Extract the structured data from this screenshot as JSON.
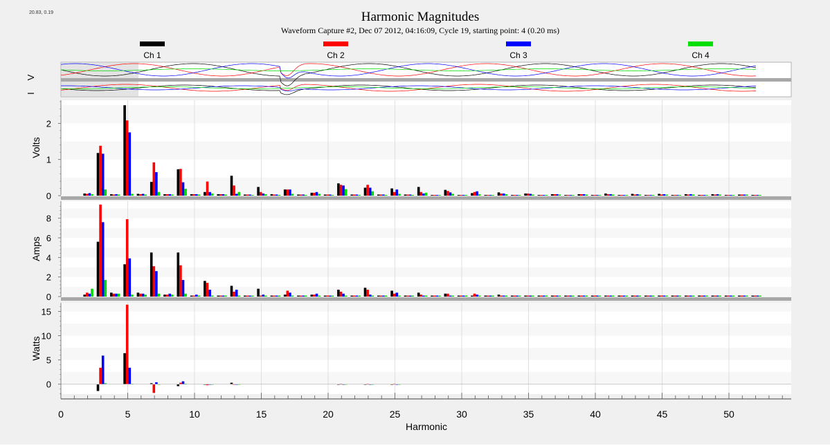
{
  "corner_readout": "20.83, 0.19",
  "title": "Harmonic Magnitudes",
  "subtitle": "Waveform Capture #2, Dec 07 2012, 04:16:09, Cycle 19,  starting point: 4  (0.20 ms)",
  "colors": {
    "background": "#f0f0f0",
    "grid": "#d8d8d8",
    "band": "#f7f7f7",
    "axis_bar": "#a8a8a8"
  },
  "legend": [
    {
      "label": "Ch 1",
      "color": "#000000"
    },
    {
      "label": "Ch 2",
      "color": "#ff0000"
    },
    {
      "label": "Ch 3",
      "color": "#0000ff"
    },
    {
      "label": "Ch 4",
      "color": "#00dd00"
    }
  ],
  "waveform_strip": {
    "v_label": "V",
    "i_label": "I"
  },
  "chart_data": [
    {
      "type": "bar",
      "ylabel": "Volts",
      "ylim": [
        0,
        2.6
      ],
      "yticks": [
        0,
        1,
        2
      ],
      "x": [
        2,
        3,
        4,
        5,
        6,
        7,
        8,
        9,
        10,
        11,
        12,
        13,
        14,
        15,
        16,
        17,
        18,
        19,
        20,
        21,
        22,
        23,
        24,
        25,
        26,
        27,
        28,
        29,
        30,
        31,
        32,
        33,
        34,
        35,
        36,
        37,
        38,
        39,
        40,
        41,
        42,
        43,
        44,
        45,
        46,
        47,
        48,
        49,
        50,
        51,
        52
      ],
      "series": [
        {
          "name": "Ch 1",
          "values": [
            0.06,
            1.18,
            0.04,
            2.5,
            0.05,
            0.38,
            0.04,
            0.73,
            0.04,
            0.1,
            0.04,
            0.55,
            0.03,
            0.24,
            0.04,
            0.17,
            0.03,
            0.08,
            0.03,
            0.34,
            0.03,
            0.22,
            0.03,
            0.2,
            0.03,
            0.24,
            0.02,
            0.16,
            0.02,
            0.07,
            0.02,
            0.09,
            0.02,
            0.06,
            0.02,
            0.04,
            0.02,
            0.04,
            0.02,
            0.06,
            0.02,
            0.05,
            0.02,
            0.05,
            0.02,
            0.04,
            0.02,
            0.04,
            0.02,
            0.03,
            0.02
          ]
        },
        {
          "name": "Ch 2",
          "values": [
            0.05,
            1.38,
            0.03,
            2.08,
            0.04,
            0.92,
            0.04,
            0.74,
            0.04,
            0.39,
            0.04,
            0.28,
            0.03,
            0.1,
            0.03,
            0.17,
            0.03,
            0.08,
            0.03,
            0.3,
            0.03,
            0.3,
            0.03,
            0.1,
            0.03,
            0.1,
            0.02,
            0.13,
            0.02,
            0.1,
            0.02,
            0.06,
            0.02,
            0.06,
            0.02,
            0.04,
            0.02,
            0.04,
            0.02,
            0.04,
            0.02,
            0.03,
            0.02,
            0.03,
            0.02,
            0.03,
            0.02,
            0.03,
            0.02,
            0.03,
            0.02
          ]
        },
        {
          "name": "Ch 3",
          "values": [
            0.07,
            1.16,
            0.04,
            1.75,
            0.05,
            0.65,
            0.04,
            0.37,
            0.04,
            0.1,
            0.04,
            0.05,
            0.03,
            0.06,
            0.03,
            0.17,
            0.03,
            0.1,
            0.03,
            0.28,
            0.03,
            0.22,
            0.03,
            0.17,
            0.03,
            0.06,
            0.02,
            0.09,
            0.02,
            0.12,
            0.02,
            0.06,
            0.02,
            0.05,
            0.02,
            0.04,
            0.02,
            0.04,
            0.02,
            0.04,
            0.02,
            0.04,
            0.02,
            0.04,
            0.02,
            0.04,
            0.02,
            0.04,
            0.02,
            0.03,
            0.02
          ]
        },
        {
          "name": "Ch 4",
          "values": [
            0.04,
            0.17,
            0.03,
            0.05,
            0.03,
            0.1,
            0.03,
            0.19,
            0.03,
            0.06,
            0.03,
            0.1,
            0.02,
            0.04,
            0.02,
            0.05,
            0.02,
            0.05,
            0.02,
            0.18,
            0.02,
            0.12,
            0.02,
            0.05,
            0.02,
            0.08,
            0.02,
            0.05,
            0.02,
            0.04,
            0.02,
            0.04,
            0.02,
            0.03,
            0.02,
            0.03,
            0.02,
            0.03,
            0.02,
            0.03,
            0.02,
            0.03,
            0.02,
            0.03,
            0.02,
            0.03,
            0.02,
            0.03,
            0.02,
            0.03,
            0.02
          ]
        }
      ]
    },
    {
      "type": "bar",
      "ylabel": "Amps",
      "ylim": [
        0,
        9.6
      ],
      "yticks": [
        0,
        2,
        4,
        6,
        8
      ],
      "x": [
        2,
        3,
        4,
        5,
        6,
        7,
        8,
        9,
        10,
        11,
        12,
        13,
        14,
        15,
        16,
        17,
        18,
        19,
        20,
        21,
        22,
        23,
        24,
        25,
        26,
        27,
        28,
        29,
        30,
        31,
        32,
        33,
        34,
        35,
        36,
        37,
        38,
        39,
        40,
        41,
        42,
        43,
        44,
        45,
        46,
        47,
        48,
        49,
        50,
        51,
        52
      ],
      "series": [
        {
          "name": "Ch 1",
          "values": [
            0.2,
            5.6,
            0.4,
            3.3,
            0.4,
            4.5,
            0.2,
            4.5,
            0.1,
            1.6,
            0.1,
            1.1,
            0.1,
            0.8,
            0.1,
            0.2,
            0.1,
            0.2,
            0.1,
            0.7,
            0.1,
            0.9,
            0.1,
            0.6,
            0.1,
            0.4,
            0.1,
            0.3,
            0.1,
            0.1,
            0.1,
            0.2,
            0.1,
            0.1,
            0.1,
            0.1,
            0.1,
            0.1,
            0.1,
            0.1,
            0.1,
            0.1,
            0.1,
            0.1,
            0.1,
            0.1,
            0.1,
            0.1,
            0.1,
            0.1,
            0.1
          ]
        },
        {
          "name": "Ch 2",
          "values": [
            0.4,
            9.4,
            0.3,
            7.9,
            0.3,
            3.1,
            0.2,
            3.2,
            0.1,
            1.4,
            0.1,
            0.5,
            0.1,
            0.1,
            0.1,
            0.6,
            0.1,
            0.2,
            0.1,
            0.5,
            0.1,
            0.7,
            0.1,
            0.3,
            0.1,
            0.2,
            0.1,
            0.3,
            0.1,
            0.3,
            0.1,
            0.1,
            0.1,
            0.1,
            0.1,
            0.1,
            0.1,
            0.1,
            0.1,
            0.1,
            0.1,
            0.1,
            0.1,
            0.1,
            0.1,
            0.1,
            0.1,
            0.1,
            0.1,
            0.1,
            0.1
          ]
        },
        {
          "name": "Ch 3",
          "values": [
            0.3,
            7.6,
            0.3,
            3.9,
            0.3,
            2.6,
            0.3,
            1.7,
            0.2,
            0.7,
            0.1,
            0.7,
            0.1,
            0.2,
            0.1,
            0.4,
            0.1,
            0.3,
            0.1,
            0.3,
            0.1,
            0.2,
            0.1,
            0.4,
            0.1,
            0.1,
            0.1,
            0.1,
            0.1,
            0.2,
            0.1,
            0.1,
            0.1,
            0.1,
            0.1,
            0.1,
            0.1,
            0.1,
            0.1,
            0.1,
            0.1,
            0.1,
            0.1,
            0.1,
            0.1,
            0.1,
            0.1,
            0.1,
            0.1,
            0.1,
            0.1
          ]
        },
        {
          "name": "Ch 4",
          "values": [
            0.8,
            1.7,
            0.3,
            0.2,
            0.2,
            0.3,
            0.2,
            0.3,
            0.1,
            0.1,
            0.1,
            0.1,
            0.1,
            0.1,
            0.1,
            0.1,
            0.1,
            0.1,
            0.1,
            0.1,
            0.1,
            0.1,
            0.1,
            0.1,
            0.1,
            0.1,
            0.1,
            0.1,
            0.1,
            0.1,
            0.1,
            0.1,
            0.1,
            0.1,
            0.1,
            0.1,
            0.1,
            0.1,
            0.1,
            0.1,
            0.1,
            0.1,
            0.1,
            0.1,
            0.1,
            0.1,
            0.1,
            0.1,
            0.1,
            0.1,
            0.1
          ]
        }
      ]
    },
    {
      "type": "bar",
      "ylabel": "Watts",
      "ylim": [
        -2,
        16.5
      ],
      "yticks": [
        0,
        5,
        10,
        15
      ],
      "x": [
        3,
        5,
        7,
        9,
        11,
        13,
        21,
        23,
        25
      ],
      "series": [
        {
          "name": "Ch 1",
          "values": [
            -1.4,
            6.4,
            0.2,
            -0.4,
            0,
            0.3,
            0,
            0,
            0
          ]
        },
        {
          "name": "Ch 2",
          "values": [
            3.4,
            16.4,
            -1.8,
            0.3,
            -0.2,
            -0.1,
            0.1,
            0.1,
            0.1
          ]
        },
        {
          "name": "Ch 3",
          "values": [
            5.9,
            3.4,
            0.4,
            0.6,
            0,
            0,
            0,
            0,
            0
          ]
        },
        {
          "name": "Ch 4",
          "values": [
            0.2,
            0.1,
            0,
            0.1,
            0,
            0,
            0,
            0,
            0
          ]
        }
      ]
    }
  ],
  "x_axis": {
    "label": "Harmonic",
    "ticks": [
      0,
      5,
      10,
      15,
      20,
      25,
      30,
      35,
      40,
      45,
      50
    ]
  }
}
